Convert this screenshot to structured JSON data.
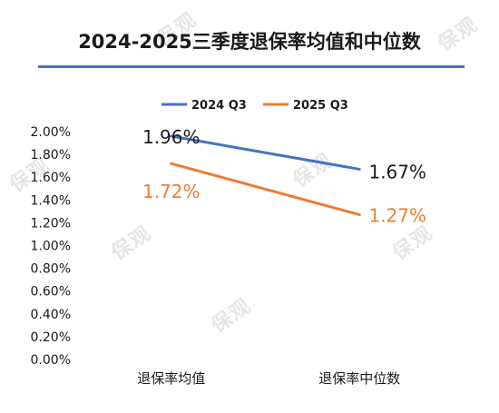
{
  "chart_data": {
    "type": "line",
    "title": "2024-2025三季度退保率均值和中位数",
    "categories": [
      "退保率均值",
      "退保率中位数"
    ],
    "series": [
      {
        "name": "2024 Q3",
        "values": [
          1.96,
          1.67
        ],
        "labels": [
          "1.96%",
          "1.67%"
        ],
        "color": "#4472c4",
        "label_color": "#1a1a1a"
      },
      {
        "name": "2025 Q3",
        "values": [
          1.72,
          1.27
        ],
        "labels": [
          "1.72%",
          "1.27%"
        ],
        "color": "#ed7d31",
        "label_color": "#ed7d31"
      }
    ],
    "yticks": [
      "0.00%",
      "0.20%",
      "0.40%",
      "0.60%",
      "0.80%",
      "1.00%",
      "1.20%",
      "1.40%",
      "1.60%",
      "1.80%",
      "2.00%"
    ],
    "ylim": [
      0,
      2.0
    ],
    "legend_position": "top",
    "grid": false
  },
  "watermark": "保观"
}
